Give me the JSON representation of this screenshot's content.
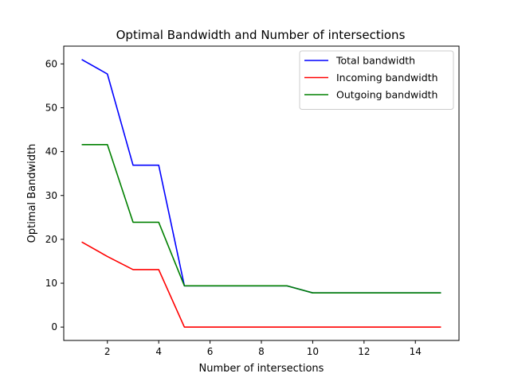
{
  "chart_data": {
    "type": "line",
    "title": "Optimal Bandwidth and Number of intersections",
    "xlabel": "Number of intersections",
    "ylabel": "Optimal Bandwidth",
    "xlim": [
      0.3,
      15.7
    ],
    "ylim": [
      -3.05,
      64.05
    ],
    "xticks": [
      2,
      4,
      6,
      8,
      10,
      12,
      14
    ],
    "yticks": [
      0,
      10,
      20,
      30,
      40,
      50,
      60
    ],
    "grid": false,
    "legend_position": "top-right",
    "x": [
      1,
      2,
      3,
      4,
      5,
      6,
      7,
      8,
      9,
      10,
      11,
      12,
      13,
      14,
      15
    ],
    "series": [
      {
        "name": "Total bandwidth",
        "color": "#0000ff",
        "values": [
          61.0,
          57.7,
          36.9,
          36.9,
          9.4,
          9.4,
          9.4,
          9.4,
          9.4,
          7.8,
          7.8,
          7.8,
          7.8,
          7.8,
          7.8
        ]
      },
      {
        "name": "Incoming bandwidth",
        "color": "#ff0000",
        "values": [
          19.4,
          16.1,
          13.1,
          13.1,
          0.0,
          0.0,
          0.0,
          0.0,
          0.0,
          0.0,
          0.0,
          0.0,
          0.0,
          0.0,
          0.0
        ]
      },
      {
        "name": "Outgoing bandwidth",
        "color": "#008000",
        "values": [
          41.6,
          41.6,
          23.9,
          23.9,
          9.4,
          9.4,
          9.4,
          9.4,
          9.4,
          7.8,
          7.8,
          7.8,
          7.8,
          7.8,
          7.8
        ]
      }
    ]
  }
}
